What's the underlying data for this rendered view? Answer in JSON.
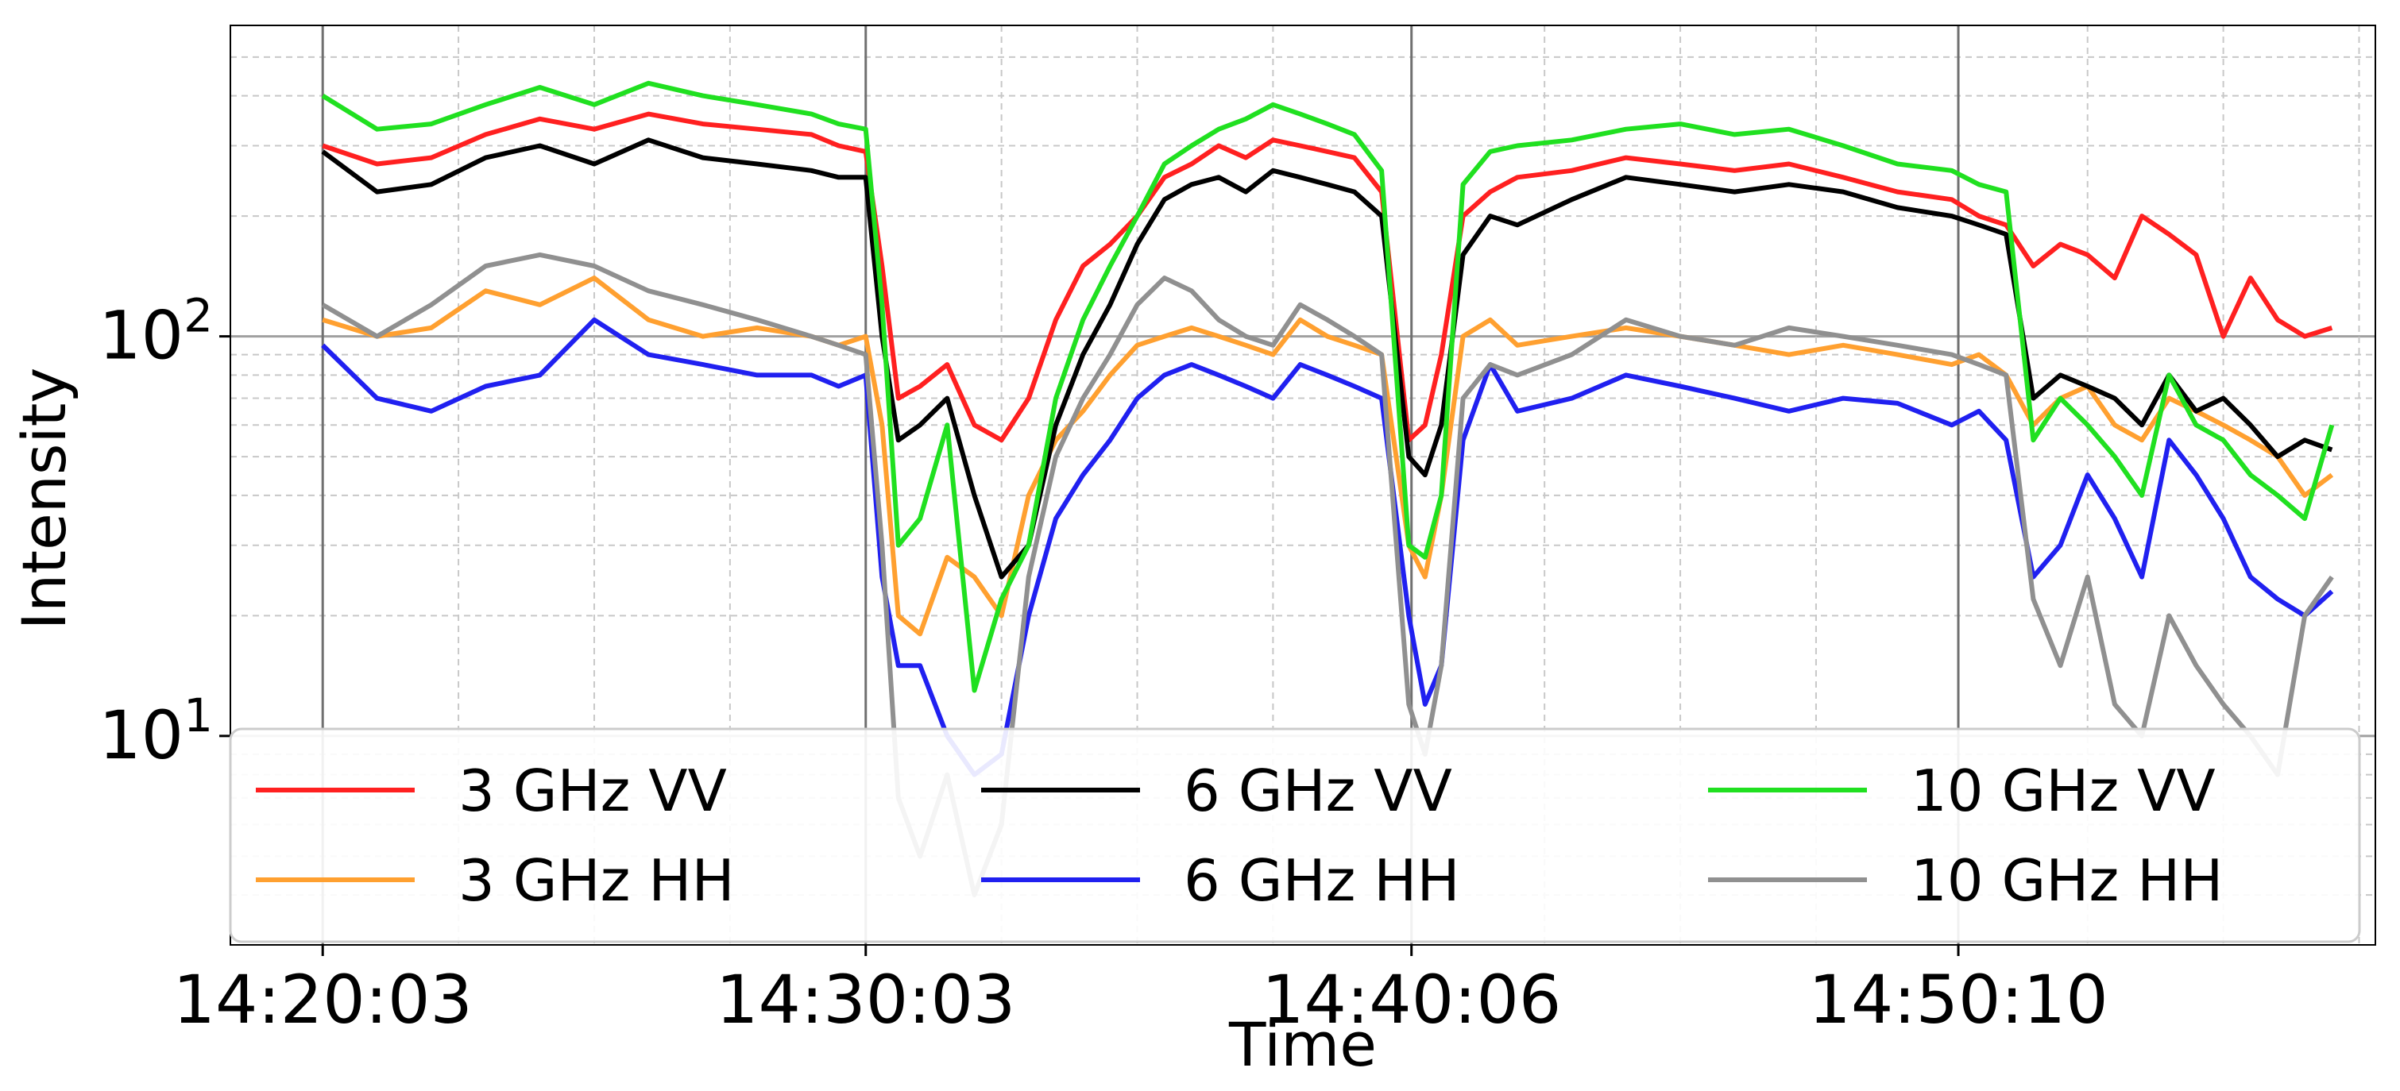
{
  "chart_data": {
    "type": "line",
    "title": "",
    "xlabel": "Time",
    "ylabel": "Intensity",
    "yscale": "log",
    "ylim": [
      3,
      600
    ],
    "xlim": [
      -1.7,
      37.8
    ],
    "x_unit": "minutes after 14:20:03",
    "x_ticks": [
      {
        "value": 0,
        "label": "14:20:03"
      },
      {
        "value": 10,
        "label": "14:30:03"
      },
      {
        "value": 20.05,
        "label": "14:40:06"
      },
      {
        "value": 30.12,
        "label": "14:50:10"
      }
    ],
    "y_ticks": [
      {
        "value": 10,
        "base": "10",
        "exp": "1"
      },
      {
        "value": 100,
        "base": "10",
        "exp": "2"
      }
    ],
    "grid": true,
    "legend": {
      "placement": "bottom",
      "columns": 3
    },
    "x": [
      0,
      1,
      2,
      3,
      4,
      5,
      6,
      7,
      8,
      9,
      9.5,
      10,
      10.3,
      10.6,
      11,
      11.5,
      12,
      12.5,
      13,
      13.5,
      14,
      14.5,
      15,
      15.5,
      16,
      16.5,
      17,
      17.5,
      18,
      18.5,
      19,
      19.5,
      20,
      20.3,
      20.6,
      21,
      21.5,
      22,
      23,
      24,
      25,
      26,
      27,
      28,
      29,
      30,
      30.5,
      31,
      31.5,
      32,
      32.5,
      33,
      33.5,
      34,
      34.5,
      35,
      35.5,
      36,
      36.5,
      37
    ],
    "series": [
      {
        "name": "3 GHz VV",
        "color": "#ff2020",
        "values": [
          300,
          270,
          280,
          320,
          350,
          330,
          360,
          340,
          330,
          320,
          300,
          290,
          150,
          70,
          75,
          85,
          60,
          55,
          70,
          110,
          150,
          170,
          200,
          250,
          270,
          300,
          280,
          310,
          300,
          290,
          280,
          230,
          55,
          60,
          90,
          200,
          230,
          250,
          260,
          280,
          270,
          260,
          270,
          250,
          230,
          220,
          200,
          190,
          150,
          170,
          160,
          140,
          200,
          180,
          160,
          100,
          140,
          110,
          100,
          105
        ]
      },
      {
        "name": "3 GHz HH",
        "color": "#ffa030",
        "values": [
          110,
          100,
          105,
          130,
          120,
          140,
          110,
          100,
          105,
          100,
          95,
          100,
          60,
          20,
          18,
          28,
          25,
          20,
          40,
          55,
          65,
          80,
          95,
          100,
          105,
          100,
          95,
          90,
          110,
          100,
          95,
          90,
          30,
          25,
          40,
          100,
          110,
          95,
          100,
          105,
          100,
          95,
          90,
          95,
          90,
          85,
          90,
          80,
          60,
          70,
          75,
          60,
          55,
          70,
          65,
          60,
          55,
          50,
          40,
          45
        ]
      },
      {
        "name": "6 GHz VV",
        "color": "#000000",
        "values": [
          290,
          230,
          240,
          280,
          300,
          270,
          310,
          280,
          270,
          260,
          250,
          250,
          100,
          55,
          60,
          70,
          40,
          25,
          30,
          60,
          90,
          120,
          170,
          220,
          240,
          250,
          230,
          260,
          250,
          240,
          230,
          200,
          50,
          45,
          60,
          160,
          200,
          190,
          220,
          250,
          240,
          230,
          240,
          230,
          210,
          200,
          190,
          180,
          70,
          80,
          75,
          70,
          60,
          80,
          65,
          70,
          60,
          50,
          55,
          52
        ]
      },
      {
        "name": "6 GHz HH",
        "color": "#2020f0",
        "values": [
          95,
          70,
          65,
          75,
          80,
          110,
          90,
          85,
          80,
          80,
          75,
          80,
          25,
          15,
          15,
          10,
          8,
          9,
          20,
          35,
          45,
          55,
          70,
          80,
          85,
          80,
          75,
          70,
          85,
          80,
          75,
          70,
          20,
          12,
          15,
          55,
          85,
          65,
          70,
          80,
          75,
          70,
          65,
          70,
          68,
          60,
          65,
          55,
          25,
          30,
          45,
          35,
          25,
          55,
          45,
          35,
          25,
          22,
          20,
          23
        ]
      },
      {
        "name": "10 GHz VV",
        "color": "#20e020",
        "values": [
          400,
          330,
          340,
          380,
          420,
          380,
          430,
          400,
          380,
          360,
          340,
          330,
          120,
          30,
          35,
          60,
          13,
          22,
          30,
          70,
          110,
          150,
          200,
          270,
          300,
          330,
          350,
          380,
          360,
          340,
          320,
          260,
          30,
          28,
          40,
          240,
          290,
          300,
          310,
          330,
          340,
          320,
          330,
          300,
          270,
          260,
          240,
          230,
          55,
          70,
          60,
          50,
          40,
          80,
          60,
          55,
          45,
          40,
          35,
          60
        ]
      },
      {
        "name": "10 GHz HH",
        "color": "#909090",
        "values": [
          120,
          100,
          120,
          150,
          160,
          150,
          130,
          120,
          110,
          100,
          95,
          90,
          30,
          7,
          5,
          8,
          4,
          6,
          25,
          50,
          70,
          90,
          120,
          140,
          130,
          110,
          100,
          95,
          120,
          110,
          100,
          90,
          12,
          9,
          15,
          70,
          85,
          80,
          90,
          110,
          100,
          95,
          105,
          100,
          95,
          90,
          85,
          80,
          22,
          15,
          25,
          12,
          10,
          20,
          15,
          12,
          10,
          8,
          20,
          25
        ]
      }
    ]
  }
}
